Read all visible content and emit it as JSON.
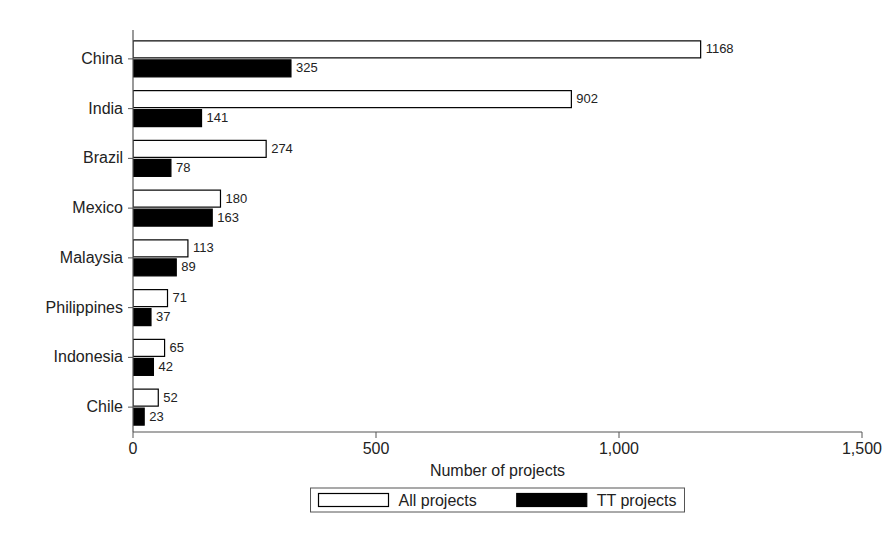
{
  "chart_data": {
    "type": "bar",
    "orientation": "horizontal",
    "categories": [
      "China",
      "India",
      "Brazil",
      "Mexico",
      "Malaysia",
      "Philippines",
      "Indonesia",
      "Chile"
    ],
    "series": [
      {
        "name": "All projects",
        "color": "#ffffff",
        "values": [
          1168,
          902,
          274,
          180,
          113,
          71,
          65,
          52
        ]
      },
      {
        "name": "TT projects",
        "color": "#000000",
        "values": [
          325,
          141,
          78,
          163,
          89,
          37,
          42,
          23
        ]
      }
    ],
    "x_label": "Number of projects",
    "xlim": [
      0,
      1500
    ],
    "xticks": [
      0,
      500,
      {
        "value": 1000,
        "label": "1,000"
      },
      {
        "value": 1500,
        "label": "1,500"
      }
    ],
    "data_labels": true,
    "legend": "bottom",
    "grid": false
  }
}
